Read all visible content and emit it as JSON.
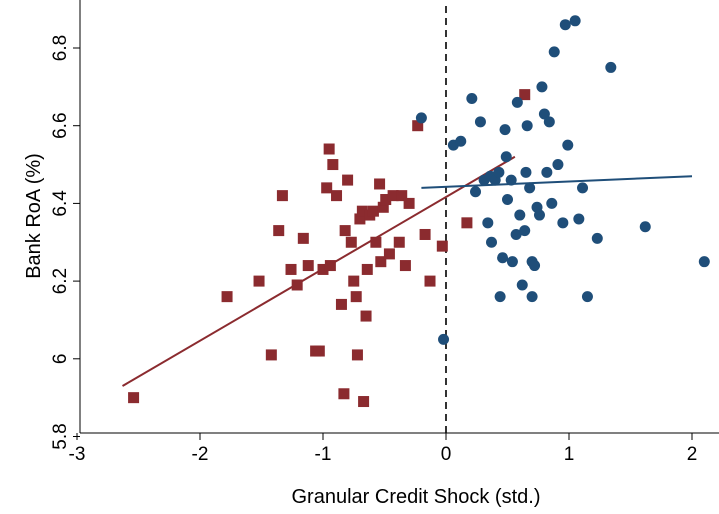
{
  "chart_data": {
    "type": "scatter",
    "xlabel": "Granular Credit Shock (std.)",
    "ylabel": "Bank RoA (%)",
    "xlim": [
      -3.0,
      2.0
    ],
    "ylim": [
      5.8,
      6.9
    ],
    "x_ticks": [
      -3,
      -2,
      -1,
      0,
      1,
      2
    ],
    "x_tick_labels": [
      "-3",
      "-2",
      "-1",
      "0",
      "1",
      "2"
    ],
    "y_ticks": [
      5.8,
      6.0,
      6.2,
      6.4,
      6.6,
      6.8
    ],
    "y_tick_labels": [
      "5.8",
      "6",
      "6.2",
      "6.4",
      "6.6",
      "6.8"
    ],
    "reference_line": {
      "x": 0,
      "style": "dashed",
      "color": "#000000"
    },
    "grid": false,
    "legend": "none",
    "series": [
      {
        "marker": "square",
        "color": "#8b2b2f",
        "points": [
          [
            -2.54,
            5.9
          ],
          [
            -1.78,
            6.16
          ],
          [
            -1.52,
            6.2
          ],
          [
            -1.42,
            6.01
          ],
          [
            -1.36,
            6.33
          ],
          [
            -1.33,
            6.42
          ],
          [
            -1.26,
            6.23
          ],
          [
            -1.21,
            6.19
          ],
          [
            -1.16,
            6.31
          ],
          [
            -1.12,
            6.24
          ],
          [
            -1.06,
            6.02
          ],
          [
            -1.03,
            6.02
          ],
          [
            -1.0,
            6.23
          ],
          [
            -0.97,
            6.44
          ],
          [
            -0.95,
            6.54
          ],
          [
            -0.94,
            6.24
          ],
          [
            -0.92,
            6.5
          ],
          [
            -0.89,
            6.42
          ],
          [
            -0.85,
            6.14
          ],
          [
            -0.83,
            5.91
          ],
          [
            -0.82,
            6.33
          ],
          [
            -0.8,
            6.46
          ],
          [
            -0.77,
            6.3
          ],
          [
            -0.75,
            6.2
          ],
          [
            -0.73,
            6.16
          ],
          [
            -0.72,
            6.01
          ],
          [
            -0.7,
            6.36
          ],
          [
            -0.68,
            6.38
          ],
          [
            -0.67,
            5.89
          ],
          [
            -0.65,
            6.11
          ],
          [
            -0.64,
            6.23
          ],
          [
            -0.62,
            6.37
          ],
          [
            -0.59,
            6.38
          ],
          [
            -0.57,
            6.3
          ],
          [
            -0.54,
            6.45
          ],
          [
            -0.53,
            6.25
          ],
          [
            -0.51,
            6.39
          ],
          [
            -0.49,
            6.41
          ],
          [
            -0.46,
            6.27
          ],
          [
            -0.43,
            6.42
          ],
          [
            -0.38,
            6.3
          ],
          [
            -0.36,
            6.42
          ],
          [
            -0.33,
            6.24
          ],
          [
            -0.3,
            6.4
          ],
          [
            -0.23,
            6.6
          ],
          [
            -0.17,
            6.32
          ],
          [
            -0.13,
            6.2
          ],
          [
            -0.03,
            6.29
          ],
          [
            0.17,
            6.35
          ],
          [
            0.64,
            6.68
          ]
        ]
      },
      {
        "marker": "circle",
        "color": "#1f4e79",
        "points": [
          [
            -0.02,
            6.05
          ],
          [
            -0.2,
            6.62
          ],
          [
            0.06,
            6.55
          ],
          [
            0.12,
            6.56
          ],
          [
            0.21,
            6.67
          ],
          [
            0.24,
            6.43
          ],
          [
            0.28,
            6.61
          ],
          [
            0.31,
            6.46
          ],
          [
            0.34,
            6.35
          ],
          [
            0.36,
            6.47
          ],
          [
            0.37,
            6.3
          ],
          [
            0.4,
            6.46
          ],
          [
            0.43,
            6.48
          ],
          [
            0.44,
            6.16
          ],
          [
            0.46,
            6.26
          ],
          [
            0.48,
            6.59
          ],
          [
            0.49,
            6.52
          ],
          [
            0.5,
            6.41
          ],
          [
            0.53,
            6.46
          ],
          [
            0.54,
            6.25
          ],
          [
            0.57,
            6.32
          ],
          [
            0.58,
            6.66
          ],
          [
            0.6,
            6.37
          ],
          [
            0.62,
            6.19
          ],
          [
            0.64,
            6.33
          ],
          [
            0.65,
            6.48
          ],
          [
            0.66,
            6.6
          ],
          [
            0.68,
            6.44
          ],
          [
            0.7,
            6.16
          ],
          [
            0.7,
            6.25
          ],
          [
            0.72,
            6.24
          ],
          [
            0.74,
            6.39
          ],
          [
            0.76,
            6.37
          ],
          [
            0.78,
            6.7
          ],
          [
            0.8,
            6.63
          ],
          [
            0.82,
            6.48
          ],
          [
            0.84,
            6.61
          ],
          [
            0.86,
            6.4
          ],
          [
            0.88,
            6.79
          ],
          [
            0.91,
            6.5
          ],
          [
            0.95,
            6.35
          ],
          [
            0.97,
            6.86
          ],
          [
            0.99,
            6.55
          ],
          [
            1.05,
            6.87
          ],
          [
            1.08,
            6.36
          ],
          [
            1.11,
            6.44
          ],
          [
            1.15,
            6.16
          ],
          [
            1.23,
            6.31
          ],
          [
            1.34,
            6.75
          ],
          [
            1.62,
            6.34
          ],
          [
            2.1,
            6.25
          ]
        ]
      }
    ],
    "fit_lines": [
      {
        "color": "#8b2b2f",
        "from": [
          -2.63,
          5.93
        ],
        "to": [
          0.56,
          6.52
        ]
      },
      {
        "color": "#1f4e79",
        "from": [
          -0.2,
          6.44
        ],
        "to": [
          2.0,
          6.47
        ]
      }
    ]
  }
}
